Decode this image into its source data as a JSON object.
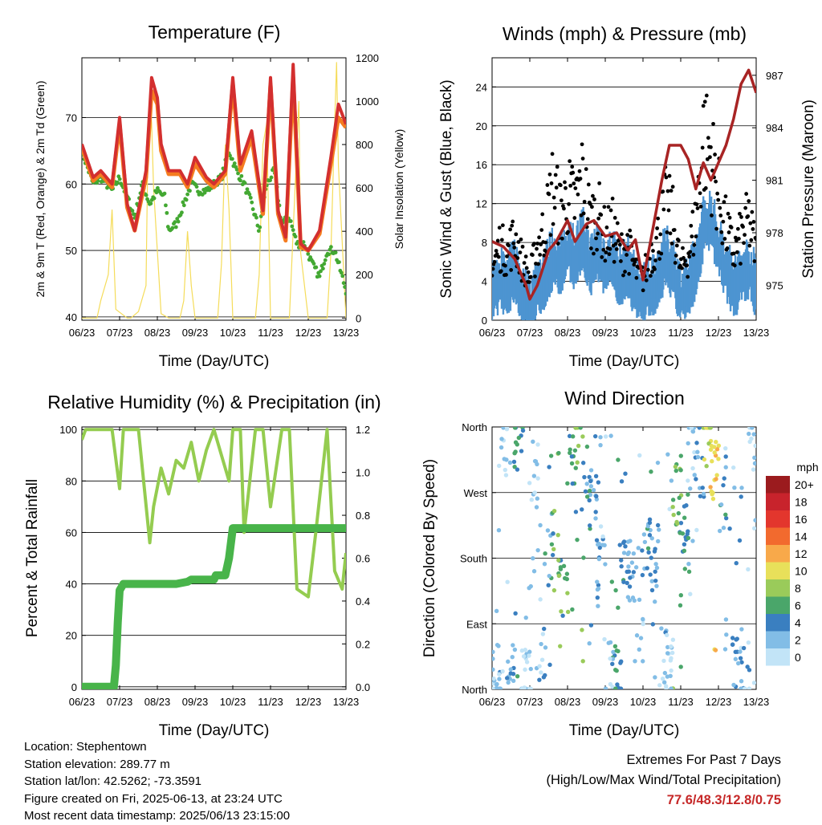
{
  "x_ticks": [
    "06/23",
    "07/23",
    "08/23",
    "09/23",
    "10/23",
    "11/23",
    "12/23",
    "13/23"
  ],
  "x_label": "Time (Day/UTC)",
  "colors": {
    "temp2m": "#d32f2f",
    "temp9m": "#f57c20",
    "dewpoint": "#43a832",
    "insolation": "#f5dc5a",
    "wind": "#4d94d1",
    "gust": "#000000",
    "pressure": "#a82424",
    "rh": "#94cc50",
    "precip": "#48b44a",
    "extremes": "#c62828"
  },
  "chart_data": [
    {
      "type": "line",
      "title": "Temperature (F)",
      "ylabel": "2m & 9m T (Red, Orange) & 2m Td (Green)",
      "y2label": "Solar Insolation (Yellow)",
      "xlabel": "Time (Day/UTC)",
      "x_ticks": [
        "06/23",
        "07/23",
        "08/23",
        "09/23",
        "10/23",
        "11/23",
        "12/23",
        "13/23"
      ],
      "ylim": [
        39.5,
        79
      ],
      "yticks": [
        40,
        50,
        60,
        70
      ],
      "y2lim": [
        -10,
        1200
      ],
      "y2ticks": [
        0,
        200,
        400,
        600,
        800,
        1000,
        1200
      ],
      "grid": true,
      "series": [
        {
          "name": "2m T",
          "axis": "left",
          "color": "#d32f2f",
          "x": [
            0,
            0.3,
            0.5,
            0.8,
            1.0,
            1.2,
            1.4,
            1.7,
            1.85,
            2.0,
            2.1,
            2.3,
            2.6,
            2.8,
            3.0,
            3.3,
            3.5,
            3.8,
            4.0,
            4.2,
            4.5,
            4.8,
            5.0,
            5.2,
            5.4,
            5.6,
            5.8,
            6.0,
            6.3,
            6.6,
            6.8,
            7.0
          ],
          "y": [
            66,
            61,
            62,
            60,
            70,
            57,
            53,
            62,
            76,
            73,
            66,
            62,
            62,
            60,
            64,
            61,
            60,
            62,
            76,
            63,
            68,
            56,
            76,
            56,
            52,
            78,
            51,
            50,
            53,
            64,
            72,
            69
          ]
        },
        {
          "name": "9m T",
          "axis": "left",
          "color": "#f57c20",
          "x": [
            0,
            0.3,
            0.5,
            0.8,
            1.0,
            1.2,
            1.4,
            1.7,
            1.85,
            2.0,
            2.1,
            2.3,
            2.6,
            2.8,
            3.0,
            3.3,
            3.5,
            3.8,
            4.0,
            4.2,
            4.5,
            4.8,
            5.0,
            5.2,
            5.4,
            5.6,
            5.8,
            6.0,
            6.3,
            6.6,
            6.8,
            7.0
          ],
          "y": [
            65.5,
            60.5,
            61.5,
            59.5,
            69,
            56.5,
            53,
            61,
            74,
            72,
            65,
            61.5,
            61.5,
            59.5,
            63,
            60.5,
            59.5,
            61.5,
            75,
            62,
            67,
            55.5,
            75,
            55.5,
            51.5,
            76,
            50.5,
            50,
            52.5,
            63,
            70,
            68.5
          ]
        },
        {
          "name": "2m Td",
          "axis": "left",
          "color": "#43a832",
          "x": [
            0,
            0.3,
            0.5,
            0.8,
            1.0,
            1.2,
            1.4,
            1.6,
            1.8,
            2.0,
            2.2,
            2.3,
            2.5,
            2.7,
            2.9,
            3.1,
            3.3,
            3.5,
            3.7,
            3.9,
            4.1,
            4.3,
            4.5,
            4.7,
            4.9,
            5.1,
            5.3,
            5.5,
            5.7,
            5.9,
            6.1,
            6.3,
            6.5,
            6.7,
            6.9,
            7.0
          ],
          "y": [
            65,
            60,
            61,
            59,
            61,
            58,
            55,
            60,
            57,
            59,
            58,
            53,
            54,
            57,
            60,
            59,
            59,
            60,
            61,
            65,
            62,
            60,
            57,
            53,
            60,
            62,
            54,
            55,
            51,
            51,
            48,
            46,
            50,
            50,
            46,
            44
          ]
        },
        {
          "name": "Solar Insolation",
          "axis": "right",
          "color": "#f5dc5a",
          "x": [
            0,
            0.4,
            0.5,
            0.7,
            0.8,
            0.9,
            1.2,
            1.3,
            1.5,
            1.7,
            1.75,
            1.8,
            1.85,
            1.9,
            2.1,
            2.3,
            2.6,
            2.7,
            2.8,
            2.9,
            3.0,
            3.2,
            3.3,
            3.6,
            3.7,
            3.8,
            3.9,
            4.0,
            4.2,
            4.3,
            4.6,
            4.7,
            4.8,
            4.9,
            5.0,
            5.2,
            5.3,
            5.5,
            5.6,
            5.7,
            5.75,
            5.8,
            6.0,
            6.3,
            6.5,
            6.6,
            6.7,
            6.75,
            6.8,
            7.0
          ],
          "y": [
            0,
            0,
            80,
            200,
            500,
            40,
            0,
            0,
            30,
            150,
            800,
            1000,
            900,
            600,
            20,
            0,
            0,
            80,
            400,
            150,
            0,
            0,
            0,
            0,
            250,
            800,
            500,
            0,
            0,
            0,
            0,
            200,
            800,
            900,
            0,
            0,
            0,
            0,
            400,
            800,
            1000,
            300,
            0,
            0,
            0,
            300,
            900,
            1180,
            700,
            0
          ]
        }
      ]
    },
    {
      "type": "scatter",
      "title": "Winds (mph) & Pressure (mb)",
      "ylabel": "Sonic Wind & Gust (Blue, Black)",
      "y2label": "Station Pressure (Maroon)",
      "xlabel": "Time (Day/UTC)",
      "x_ticks": [
        "06/23",
        "07/23",
        "08/23",
        "09/23",
        "10/23",
        "11/23",
        "12/23",
        "13/23"
      ],
      "ylim": [
        0,
        27
      ],
      "yticks": [
        0,
        4,
        8,
        12,
        16,
        20,
        24
      ],
      "y2lim": [
        973.0,
        988.0
      ],
      "y2ticks": [
        975,
        978,
        981,
        984,
        987
      ],
      "grid": true,
      "series": [
        {
          "name": "Sonic Wind",
          "axis": "left",
          "color": "#4d94d1",
          "x": [
            0,
            0.2,
            0.4,
            0.6,
            0.8,
            1.0,
            1.2,
            1.4,
            1.6,
            1.8,
            2.0,
            2.2,
            2.4,
            2.6,
            2.8,
            3.0,
            3.2,
            3.4,
            3.6,
            3.8,
            4.0,
            4.2,
            4.4,
            4.6,
            4.8,
            5.0,
            5.2,
            5.4,
            5.6,
            5.8,
            6.0,
            6.2,
            6.4,
            6.6,
            6.8,
            7.0
          ],
          "y": [
            3,
            5,
            4,
            6,
            3,
            2,
            4,
            5,
            7,
            6,
            8,
            7,
            9,
            6,
            8,
            6,
            7,
            5,
            6,
            4,
            3,
            4,
            5,
            7,
            6,
            3,
            4,
            6,
            10,
            11,
            8,
            6,
            4,
            5,
            6,
            4
          ]
        },
        {
          "name": "Gust",
          "axis": "left",
          "color": "#000000",
          "x": [
            0,
            0.2,
            0.4,
            0.6,
            0.8,
            1.0,
            1.2,
            1.4,
            1.6,
            1.8,
            2.0,
            2.2,
            2.4,
            2.6,
            2.8,
            3.0,
            3.2,
            3.4,
            3.6,
            3.8,
            4.0,
            4.2,
            4.4,
            4.6,
            4.8,
            5.0,
            5.2,
            5.4,
            5.6,
            5.8,
            6.0,
            6.2,
            6.4,
            6.6,
            6.8,
            7.0
          ],
          "y": [
            6,
            9,
            8,
            10,
            7,
            5,
            9,
            11,
            16,
            13,
            15,
            14,
            17,
            12,
            13,
            10,
            11,
            8,
            9,
            6,
            5,
            8,
            10,
            14,
            12,
            6,
            8,
            12,
            22,
            20,
            15,
            11,
            8,
            10,
            12,
            8
          ]
        },
        {
          "name": "Station Pressure",
          "axis": "right",
          "color": "#a82424",
          "x": [
            0,
            0.3,
            0.6,
            0.9,
            1.0,
            1.2,
            1.5,
            1.7,
            2.0,
            2.2,
            2.5,
            2.7,
            3.0,
            3.3,
            3.6,
            3.8,
            4.0,
            4.2,
            4.5,
            4.7,
            5.0,
            5.2,
            5.4,
            5.6,
            5.8,
            6.0,
            6.2,
            6.4,
            6.6,
            6.8,
            7.0
          ],
          "y": [
            977.5,
            977.2,
            976.5,
            975,
            974.2,
            975,
            977,
            977.5,
            978.7,
            977.5,
            978.5,
            978.7,
            977.8,
            978,
            977,
            977.6,
            975.3,
            977.5,
            981,
            983,
            983,
            982.2,
            980.5,
            982,
            981,
            982,
            983,
            984.5,
            986.5,
            987.3,
            986
          ]
        }
      ]
    },
    {
      "type": "line",
      "title": "Relative Humidity (%) & Precipitation (in)",
      "ylabel": "Percent & Total Rainfall",
      "xlabel": "Time (Day/UTC)",
      "x_ticks": [
        "06/23",
        "07/23",
        "08/23",
        "09/23",
        "10/23",
        "11/23",
        "12/23",
        "13/23"
      ],
      "ylim": [
        -1,
        101
      ],
      "yticks": [
        0,
        20,
        40,
        60,
        80,
        100
      ],
      "y2lim": [
        -0.012,
        1.212
      ],
      "y2ticks": [
        0.0,
        0.2,
        0.4,
        0.6,
        0.8,
        1.0,
        1.2
      ],
      "grid": true,
      "series": [
        {
          "name": "Relative Humidity",
          "axis": "left",
          "color": "#94cc50",
          "x": [
            0,
            0.1,
            0.3,
            0.8,
            1.0,
            1.1,
            1.2,
            1.5,
            1.8,
            1.9,
            2.1,
            2.3,
            2.5,
            2.7,
            2.9,
            3.1,
            3.3,
            3.5,
            3.7,
            3.9,
            4.0,
            4.2,
            4.3,
            4.6,
            4.8,
            5.0,
            5.3,
            5.5,
            5.7,
            6.0,
            6.2,
            6.5,
            6.7,
            6.9,
            7.0
          ],
          "y": [
            96,
            100,
            100,
            100,
            77,
            100,
            100,
            100,
            56,
            70,
            85,
            75,
            88,
            85,
            95,
            80,
            92,
            100,
            90,
            80,
            100,
            100,
            60,
            100,
            100,
            70,
            100,
            100,
            38,
            35,
            60,
            100,
            45,
            38,
            52
          ]
        },
        {
          "name": "Total Precipitation",
          "axis": "right",
          "color": "#48b44a",
          "x": [
            0,
            0.85,
            0.9,
            0.95,
            1.0,
            1.1,
            1.5,
            2.5,
            2.8,
            2.9,
            3.3,
            3.5,
            3.55,
            3.8,
            3.85,
            3.9,
            4.0,
            4.2,
            4.5,
            5.0,
            6.0,
            7.0
          ],
          "y": [
            0,
            0,
            0.1,
            0.3,
            0.45,
            0.48,
            0.48,
            0.48,
            0.49,
            0.5,
            0.5,
            0.5,
            0.52,
            0.52,
            0.56,
            0.6,
            0.74,
            0.74,
            0.74,
            0.74,
            0.74,
            0.74
          ]
        }
      ]
    },
    {
      "type": "scatter",
      "title": "Wind Direction",
      "ylabel": "Direction (Colored By Speed)",
      "xlabel": "Time (Day/UTC)",
      "x_ticks": [
        "06/23",
        "07/23",
        "08/23",
        "09/23",
        "10/23",
        "11/23",
        "12/23",
        "13/23"
      ],
      "ylim": [
        0,
        360
      ],
      "ytick_values": [
        0,
        90,
        180,
        270,
        360
      ],
      "ytick_labels": [
        "North",
        "East",
        "South",
        "West",
        "North"
      ],
      "grid": true,
      "legend": {
        "title": "mph",
        "position": "right",
        "labels": [
          "20+",
          "18",
          "16",
          "14",
          "12",
          "10",
          "8",
          "6",
          "4",
          "2",
          "0"
        ],
        "colors": [
          "#9b1b1e",
          "#c8232c",
          "#e3362d",
          "#f26a2e",
          "#f8a94a",
          "#e8e05a",
          "#9acb5a",
          "#4aa66a",
          "#3a7fc0",
          "#82bde6",
          "#c2e4f7"
        ]
      },
      "series": [
        {
          "name": "Wind Direction",
          "x": [
            0.1,
            0.3,
            0.5,
            0.7,
            0.9,
            1.1,
            1.3,
            1.5,
            1.7,
            1.9,
            2.1,
            2.3,
            2.5,
            2.7,
            2.9,
            3.1,
            3.3,
            3.5,
            3.7,
            3.9,
            4.1,
            4.3,
            4.5,
            4.7,
            4.9,
            5.1,
            5.3,
            5.5,
            5.7,
            5.9,
            6.1,
            6.3,
            6.5,
            6.7,
            6.9
          ],
          "y": [
            20,
            340,
            30,
            350,
            10,
            300,
            40,
            200,
            180,
            150,
            320,
            330,
            290,
            260,
            170,
            30,
            20,
            190,
            160,
            90,
            200,
            180,
            40,
            30,
            270,
            230,
            330,
            300,
            350,
            290,
            250,
            320,
            40,
            30,
            340
          ],
          "speed": [
            3,
            2,
            4,
            6,
            2,
            2,
            3,
            5,
            8,
            7,
            6,
            8,
            5,
            4,
            3,
            2,
            6,
            5,
            4,
            2,
            5,
            4,
            3,
            2,
            8,
            6,
            2,
            4,
            10,
            12,
            5,
            3,
            4,
            3,
            2
          ]
        }
      ]
    }
  ],
  "station": {
    "location": "Location: Stephentown",
    "elevation": "Station elevation: 289.77 m",
    "latlon": "Station lat/lon: 42.5262; -73.3591",
    "created": "Figure created on Fri, 2025-06-13, at 23:24 UTC",
    "latest": "Most recent data timestamp: 2025/06/13 23:15:00"
  },
  "extremes": {
    "title": "Extremes For Past 7 Days",
    "subtitle": "(High/Low/Max Wind/Total Precipitation)",
    "values": "77.6/48.3/12.8/0.75"
  }
}
